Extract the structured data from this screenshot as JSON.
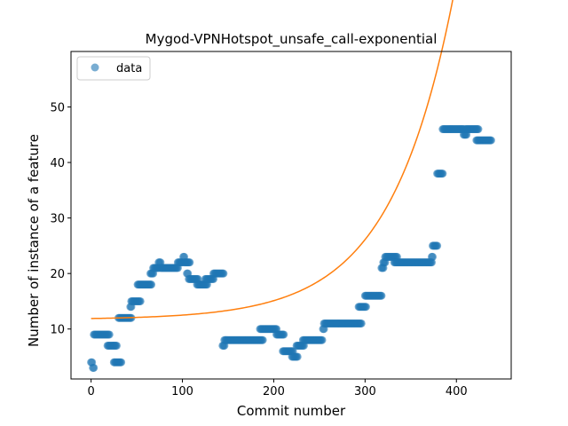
{
  "chart_data": {
    "type": "scatter",
    "title": "Mygod-VPNHotspot_unsafe_call-exponential",
    "xlabel": "Commit number",
    "ylabel": "Number of instance of a feature",
    "xlim": [
      -22,
      460
    ],
    "ylim": [
      1,
      60
    ],
    "xticks": [
      0,
      100,
      200,
      300,
      400
    ],
    "yticks": [
      10,
      20,
      30,
      40,
      50
    ],
    "grid": false,
    "legend_position": "top-left",
    "colors": {
      "data": "#1f77b4",
      "fit": "#ff7f0e"
    },
    "series": [
      {
        "name": "data",
        "kind": "scatter",
        "segments": [
          [
            0,
            1,
            4
          ],
          [
            2,
            3,
            3
          ],
          [
            3,
            20,
            9
          ],
          [
            18,
            28,
            7
          ],
          [
            25,
            33,
            4
          ],
          [
            30,
            44,
            12
          ],
          [
            43,
            44,
            14
          ],
          [
            44,
            54,
            15
          ],
          [
            51,
            66,
            18
          ],
          [
            65,
            68,
            20
          ],
          [
            68,
            74,
            21
          ],
          [
            74,
            76,
            22
          ],
          [
            76,
            95,
            21
          ],
          [
            95,
            100,
            22
          ],
          [
            101,
            102,
            23
          ],
          [
            102,
            108,
            22
          ],
          [
            105,
            106,
            20
          ],
          [
            107,
            117,
            19
          ],
          [
            116,
            127,
            18
          ],
          [
            125,
            134,
            19
          ],
          [
            134,
            145,
            20
          ],
          [
            144,
            146,
            7
          ],
          [
            146,
            188,
            8
          ],
          [
            185,
            203,
            10
          ],
          [
            203,
            211,
            9
          ],
          [
            210,
            221,
            6
          ],
          [
            220,
            226,
            5
          ],
          [
            225,
            233,
            7
          ],
          [
            232,
            253,
            8
          ],
          [
            254,
            255,
            10
          ],
          [
            255,
            296,
            11
          ],
          [
            293,
            301,
            14
          ],
          [
            300,
            318,
            16
          ],
          [
            318,
            320,
            21
          ],
          [
            320,
            322,
            22
          ],
          [
            322,
            335,
            23
          ],
          [
            332,
            373,
            22
          ],
          [
            373,
            374,
            23
          ],
          [
            374,
            379,
            25
          ],
          [
            379,
            385,
            38
          ],
          [
            385,
            408,
            46
          ],
          [
            408,
            411,
            45
          ],
          [
            410,
            424,
            46
          ],
          [
            422,
            438,
            44
          ]
        ]
      },
      {
        "name": "",
        "kind": "line",
        "fit": {
          "a": 0.19,
          "b": 0.01443,
          "c": 11.7,
          "x_start": 0,
          "x_end": 436
        }
      }
    ]
  }
}
